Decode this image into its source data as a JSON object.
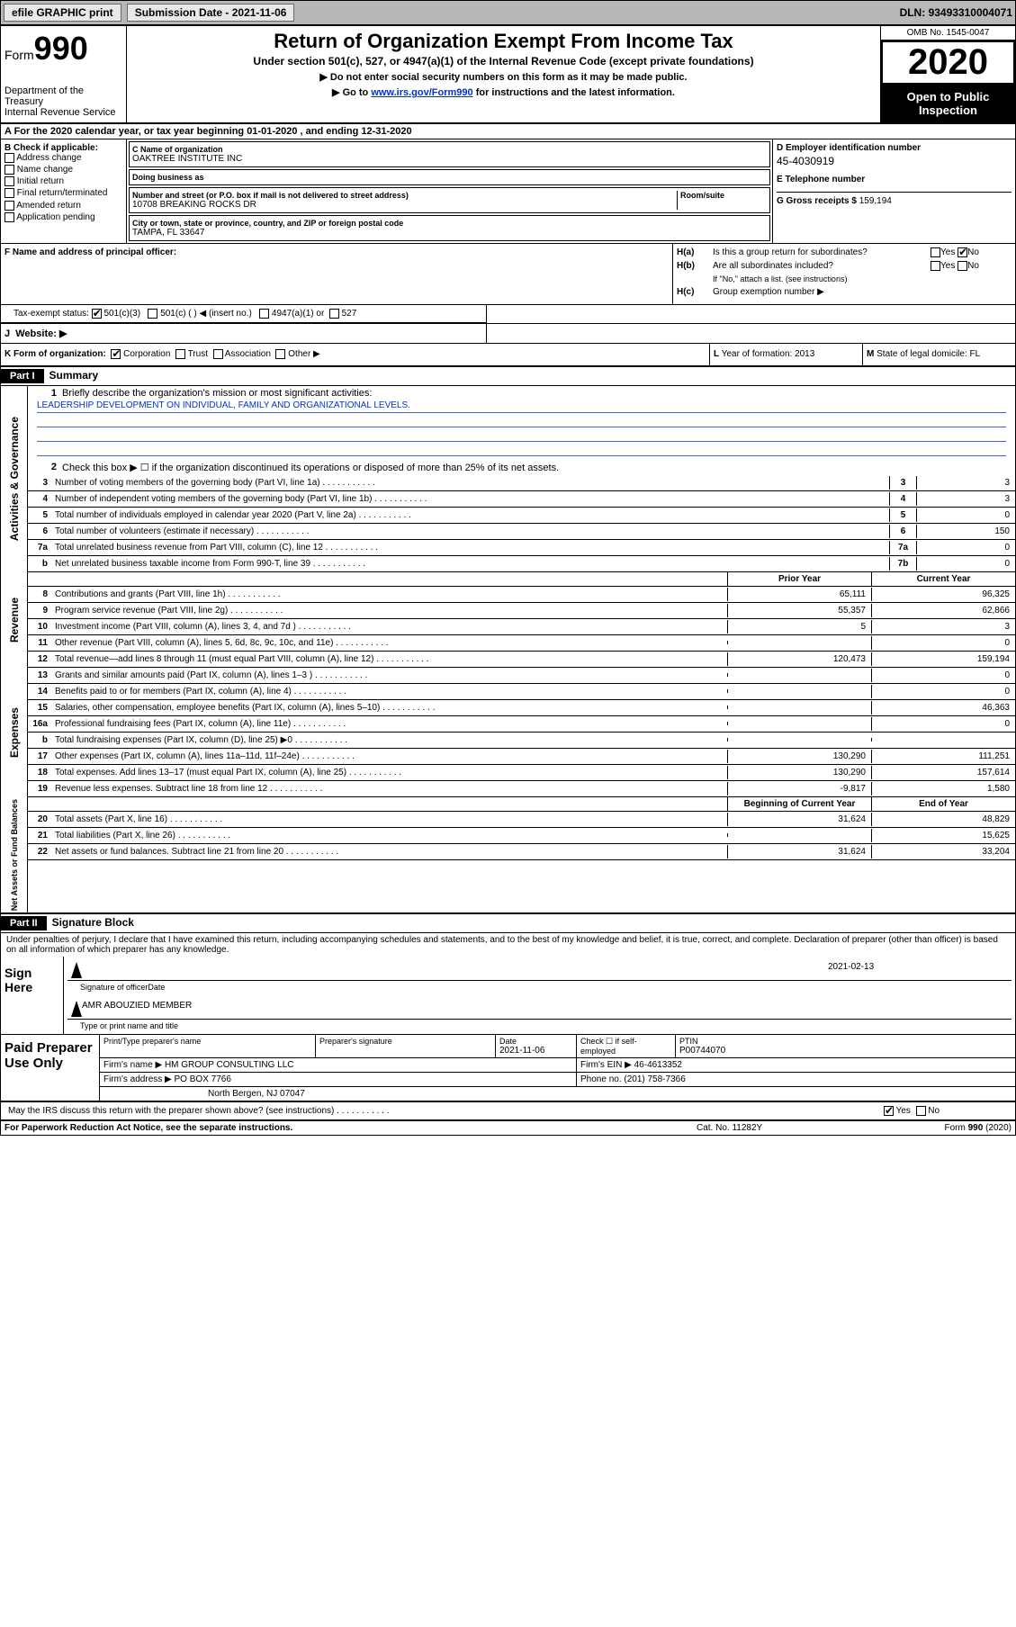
{
  "topbar": {
    "efile": "efile GRAPHIC print",
    "submission_label": "Submission Date - ",
    "submission_date": "2021-11-06",
    "dln_label": "DLN: ",
    "dln": "93493310004071"
  },
  "header": {
    "form_label": "Form",
    "form_num": "990",
    "dept": "Department of the Treasury\nInternal Revenue Service",
    "title": "Return of Organization Exempt From Income Tax",
    "subtitle": "Under section 501(c), 527, or 4947(a)(1) of the Internal Revenue Code (except private foundations)",
    "note1": "▶ Do not enter social security numbers on this form as it may be made public.",
    "note2_pre": "▶ Go to ",
    "note2_link": "www.irs.gov/Form990",
    "note2_post": " for instructions and the latest information.",
    "omb": "OMB No. 1545-0047",
    "year": "2020",
    "inspect": "Open to Public Inspection"
  },
  "row_a": "A For the 2020 calendar year, or tax year beginning 01-01-2020    , and ending 12-31-2020",
  "col_b": {
    "hdr": "B Check if applicable:",
    "items": [
      "Address change",
      "Name change",
      "Initial return",
      "Final return/terminated",
      "Amended return",
      "Application pending"
    ]
  },
  "col_c": {
    "name_lbl": "C Name of organization",
    "name": "OAKTREE INSTITUTE INC",
    "dba_lbl": "Doing business as",
    "dba": "",
    "street_lbl": "Number and street (or P.O. box if mail is not delivered to street address)",
    "street": "10708 BREAKING ROCKS DR",
    "suite_lbl": "Room/suite",
    "city_lbl": "City or town, state or province, country, and ZIP or foreign postal code",
    "city": "TAMPA, FL  33647"
  },
  "col_d": {
    "ein_lbl": "D Employer identification number",
    "ein": "45-4030919",
    "tel_lbl": "E Telephone number",
    "tel": "",
    "gross_lbl": "G Gross receipts $ ",
    "gross": "159,194"
  },
  "row_f": {
    "lbl": "F  Name and address of principal officer:",
    "val": ""
  },
  "row_h": {
    "ha_lbl": "H(a)",
    "ha_txt": "Is this a group return for subordinates?",
    "ha_yes": "Yes",
    "ha_no": "No",
    "hb_lbl": "H(b)",
    "hb_txt": "Are all subordinates included?",
    "hb_note": "If \"No,\" attach a list. (see instructions)",
    "hc_lbl": "H(c)",
    "hc_txt": "Group exemption number ▶"
  },
  "row_i": {
    "lbl": "Tax-exempt status:",
    "c3": "501(c)(3)",
    "c": "501(c) (  ) ◀ (insert no.)",
    "a1": "4947(a)(1) or",
    "s527": "527"
  },
  "row_j": {
    "lbl": "J",
    "txt": "Website: ▶"
  },
  "row_k": {
    "lbl": "K Form of organization:",
    "corp": "Corporation",
    "trust": "Trust",
    "assoc": "Association",
    "other": "Other ▶"
  },
  "col_l": {
    "lbl": "L",
    "txt": "Year of formation: ",
    "val": "2013"
  },
  "col_m": {
    "lbl": "M",
    "txt": "State of legal domicile: ",
    "val": "FL"
  },
  "part1": {
    "hdr": "Part I",
    "title": "Summary",
    "l1_lbl": "1",
    "l1_txt": "Briefly describe the organization's mission or most significant activities:",
    "l1_val": "LEADERSHIP DEVELOPMENT ON INDIVIDUAL, FAMILY AND ORGANIZATIONAL LEVELS.",
    "l2_lbl": "2",
    "l2_txt": "Check this box ▶ ☐  if the organization discontinued its operations or disposed of more than 25% of its net assets."
  },
  "gov_lines": [
    {
      "n": "3",
      "txt": "Number of voting members of the governing body (Part VI, line 1a)",
      "box": "3",
      "val": "3"
    },
    {
      "n": "4",
      "txt": "Number of independent voting members of the governing body (Part VI, line 1b)",
      "box": "4",
      "val": "3"
    },
    {
      "n": "5",
      "txt": "Total number of individuals employed in calendar year 2020 (Part V, line 2a)",
      "box": "5",
      "val": "0"
    },
    {
      "n": "6",
      "txt": "Total number of volunteers (estimate if necessary)",
      "box": "6",
      "val": "150"
    },
    {
      "n": "7a",
      "txt": "Total unrelated business revenue from Part VIII, column (C), line 12",
      "box": "7a",
      "val": "0"
    },
    {
      "n": "b",
      "txt": "Net unrelated business taxable income from Form 990-T, line 39",
      "box": "7b",
      "val": "0"
    }
  ],
  "gov_label": "Activities & Governance",
  "rev_label": "Revenue",
  "rev_hdr": {
    "prior": "Prior Year",
    "current": "Current Year"
  },
  "rev_lines": [
    {
      "n": "8",
      "txt": "Contributions and grants (Part VIII, line 1h)",
      "p": "65,111",
      "c": "96,325"
    },
    {
      "n": "9",
      "txt": "Program service revenue (Part VIII, line 2g)",
      "p": "55,357",
      "c": "62,866"
    },
    {
      "n": "10",
      "txt": "Investment income (Part VIII, column (A), lines 3, 4, and 7d )",
      "p": "5",
      "c": "3"
    },
    {
      "n": "11",
      "txt": "Other revenue (Part VIII, column (A), lines 5, 6d, 8c, 9c, 10c, and 11e)",
      "p": "",
      "c": "0"
    },
    {
      "n": "12",
      "txt": "Total revenue—add lines 8 through 11 (must equal Part VIII, column (A), line 12)",
      "p": "120,473",
      "c": "159,194"
    }
  ],
  "exp_label": "Expenses",
  "exp_lines": [
    {
      "n": "13",
      "txt": "Grants and similar amounts paid (Part IX, column (A), lines 1–3 )",
      "p": "",
      "c": "0"
    },
    {
      "n": "14",
      "txt": "Benefits paid to or for members (Part IX, column (A), line 4)",
      "p": "",
      "c": "0"
    },
    {
      "n": "15",
      "txt": "Salaries, other compensation, employee benefits (Part IX, column (A), lines 5–10)",
      "p": "",
      "c": "46,363"
    },
    {
      "n": "16a",
      "txt": "Professional fundraising fees (Part IX, column (A), line 11e)",
      "p": "",
      "c": "0"
    },
    {
      "n": "b",
      "txt": "Total fundraising expenses (Part IX, column (D), line 25) ▶0",
      "p": "shade",
      "c": "shade"
    },
    {
      "n": "17",
      "txt": "Other expenses (Part IX, column (A), lines 11a–11d, 11f–24e)",
      "p": "130,290",
      "c": "111,251"
    },
    {
      "n": "18",
      "txt": "Total expenses. Add lines 13–17 (must equal Part IX, column (A), line 25)",
      "p": "130,290",
      "c": "157,614"
    },
    {
      "n": "19",
      "txt": "Revenue less expenses. Subtract line 18 from line 12",
      "p": "-9,817",
      "c": "1,580"
    }
  ],
  "na_label": "Net Assets or Fund Balances",
  "na_hdr": {
    "prior": "Beginning of Current Year",
    "current": "End of Year"
  },
  "na_lines": [
    {
      "n": "20",
      "txt": "Total assets (Part X, line 16)",
      "p": "31,624",
      "c": "48,829"
    },
    {
      "n": "21",
      "txt": "Total liabilities (Part X, line 26)",
      "p": "",
      "c": "15,625"
    },
    {
      "n": "22",
      "txt": "Net assets or fund balances. Subtract line 21 from line 20",
      "p": "31,624",
      "c": "33,204"
    }
  ],
  "part2": {
    "hdr": "Part II",
    "title": "Signature Block",
    "decl": "Under penalties of perjury, I declare that I have examined this return, including accompanying schedules and statements, and to the best of my knowledge and belief, it is true, correct, and complete. Declaration of preparer (other than officer) is based on all information of which preparer has any knowledge."
  },
  "sign": {
    "lbl": "Sign Here",
    "sig_lbl": "Signature of officer",
    "date_lbl": "Date",
    "date": "2021-02-13",
    "name": "AMR ABOUZIED MEMBER",
    "name_lbl": "Type or print name and title"
  },
  "paid": {
    "lbl": "Paid Preparer Use Only",
    "r1_c1_lbl": "Print/Type preparer's name",
    "r1_c1": "",
    "r1_c2_lbl": "Preparer's signature",
    "r1_c2": "",
    "r1_c3_lbl": "Date",
    "r1_c3": "2021-11-06",
    "r1_c4_lbl": "Check ☐ if self-employed",
    "r1_c5_lbl": "PTIN",
    "r1_c5": "P00744070",
    "r2_lbl": "Firm's name    ▶",
    "r2_val": "HM GROUP CONSULTING LLC",
    "r2_ein_lbl": "Firm's EIN ▶",
    "r2_ein": "46-4613352",
    "r3_lbl": "Firm's address ▶",
    "r3_val": "PO BOX 7766",
    "r3_val2": "North Bergen, NJ  07047",
    "r3_ph_lbl": "Phone no. ",
    "r3_ph": "(201) 758-7366"
  },
  "discuss": {
    "txt": "May the IRS discuss this return with the preparer shown above? (see instructions)",
    "yes": "Yes",
    "no": "No"
  },
  "footer": {
    "pra": "For Paperwork Reduction Act Notice, see the separate instructions.",
    "cat": "Cat. No. 11282Y",
    "form": "Form 990 (2020)"
  }
}
